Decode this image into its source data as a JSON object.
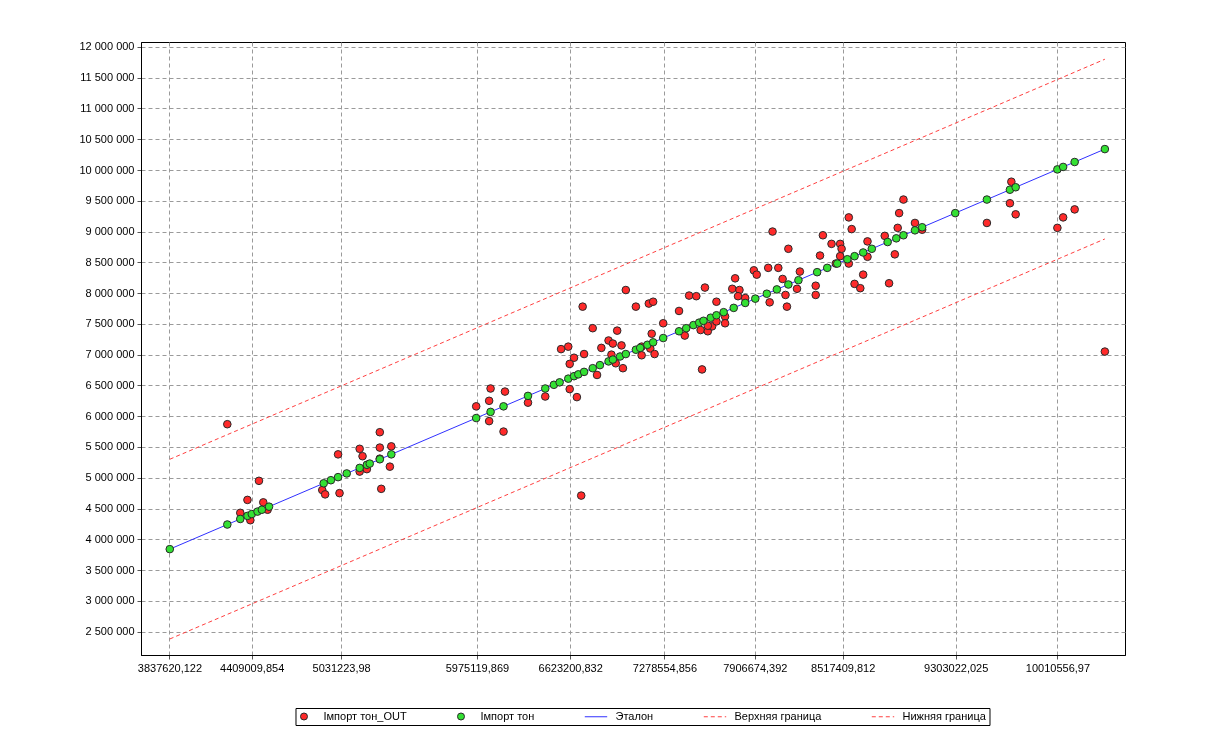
{
  "chart_data": {
    "type": "scatter",
    "grid": true,
    "legend": "bottom",
    "marker": "circle",
    "xlim": [
      3640000,
      10480000
    ],
    "ylim": [
      2120000,
      12080000
    ],
    "xticks": [
      {
        "value": 3837620.122,
        "label": "3837620,122"
      },
      {
        "value": 4409009.854,
        "label": "4409009,854"
      },
      {
        "value": 5031223.98,
        "label": "5031223,98"
      },
      {
        "value": 5975119.869,
        "label": "5975119,869"
      },
      {
        "value": 6623200.832,
        "label": "6623200,832"
      },
      {
        "value": 7278554.856,
        "label": "7278554,856"
      },
      {
        "value": 7906674.392,
        "label": "7906674,392"
      },
      {
        "value": 8517409.812,
        "label": "8517409,812"
      },
      {
        "value": 9303022.025,
        "label": "9303022,025"
      },
      {
        "value": 10010556.97,
        "label": "10010556,97"
      }
    ],
    "yticks": [
      {
        "value": 2500000,
        "label": "2 500 000"
      },
      {
        "value": 3000000,
        "label": "3 000 000"
      },
      {
        "value": 3500000,
        "label": "3 500 000"
      },
      {
        "value": 4000000,
        "label": "4 000 000"
      },
      {
        "value": 4500000,
        "label": "4 500 000"
      },
      {
        "value": 5000000,
        "label": "5 000 000"
      },
      {
        "value": 5500000,
        "label": "5 500 000"
      },
      {
        "value": 6000000,
        "label": "6 000 000"
      },
      {
        "value": 6500000,
        "label": "6 500 000"
      },
      {
        "value": 7000000,
        "label": "7 000 000"
      },
      {
        "value": 7500000,
        "label": "7 500 000"
      },
      {
        "value": 8000000,
        "label": "8 000 000"
      },
      {
        "value": 8500000,
        "label": "8 500 000"
      },
      {
        "value": 9000000,
        "label": "9 000 000"
      },
      {
        "value": 9500000,
        "label": "9 500 000"
      },
      {
        "value": 10000000,
        "label": "10 000 000"
      },
      {
        "value": 10500000,
        "label": "10 500 000"
      },
      {
        "value": 11000000,
        "label": "11 000 000"
      },
      {
        "value": 11500000,
        "label": "11 500 000"
      },
      {
        "value": 12000000,
        "label": "12 000 000"
      }
    ],
    "series": [
      {
        "name": "Імпорт тон_OUT",
        "color": "#ff2a2a",
        "x": [
          4240000,
          4460000,
          4380000,
          4330000,
          4400000,
          4490000,
          4520000,
          5010000,
          4900000,
          4920000,
          5020000,
          5160000,
          5300000,
          5300000,
          5380000,
          5370000,
          5310000,
          5180000,
          5160000,
          5210000,
          5300000,
          5970000,
          6070000,
          6170000,
          6060000,
          6060000,
          6160000,
          6330000,
          6450000,
          6620000,
          6670000,
          6700000,
          6710000,
          6780000,
          6560000,
          6610000,
          6650000,
          6620000,
          6720000,
          6810000,
          6840000,
          6890000,
          6920000,
          6980000,
          6950000,
          6940000,
          6990000,
          6910000,
          7010000,
          7080000,
          7170000,
          7200000,
          7120000,
          7120000,
          7190000,
          7180000,
          7210000,
          7270000,
          7380000,
          7450000,
          7500000,
          7560000,
          7640000,
          7420000,
          7540000,
          7530000,
          7580000,
          7610000,
          7770000,
          7750000,
          7800000,
          7790000,
          7840000,
          7700000,
          7700000,
          7640000,
          7580000,
          7900000,
          7920000,
          8030000,
          8000000,
          8070000,
          8140000,
          8100000,
          8120000,
          8010000,
          8130000,
          8200000,
          8220000,
          8330000,
          8330000,
          8360000,
          8380000,
          8440000,
          8500000,
          8510000,
          8500000,
          8560000,
          8580000,
          8470000,
          8560000,
          8600000,
          8640000,
          8660000,
          8690000,
          8690000,
          8810000,
          8880000,
          8840000,
          8900000,
          8910000,
          8940000,
          9020000,
          9070000,
          9520000,
          9690000,
          9680000,
          9720000,
          10010000,
          10050000,
          10130000,
          10340000
        ],
        "values": [
          5870000,
          4950000,
          4640000,
          4430000,
          4310000,
          4600000,
          4480000,
          5380000,
          4800000,
          4730000,
          4750000,
          5470000,
          5740000,
          5490000,
          5510000,
          5180000,
          4820000,
          5350000,
          5100000,
          5140000,
          5310000,
          6160000,
          6450000,
          6400000,
          6250000,
          5920000,
          5750000,
          6220000,
          6320000,
          6440000,
          6310000,
          4710000,
          7780000,
          7430000,
          7090000,
          7130000,
          6950000,
          6850000,
          7010000,
          6670000,
          7110000,
          7230000,
          7180000,
          7150000,
          7390000,
          6860000,
          6780000,
          7000000,
          8050000,
          7780000,
          7830000,
          7860000,
          7130000,
          6990000,
          7340000,
          7100000,
          7010000,
          7510000,
          7710000,
          7960000,
          7950000,
          8090000,
          7860000,
          7310000,
          6760000,
          7400000,
          7380000,
          7460000,
          8240000,
          8070000,
          8050000,
          7950000,
          7920000,
          7620000,
          7510000,
          7540000,
          7470000,
          8370000,
          8300000,
          9000000,
          8410000,
          8410000,
          8720000,
          8230000,
          7970000,
          7850000,
          7780000,
          8070000,
          8350000,
          8120000,
          7970000,
          8610000,
          8940000,
          8800000,
          8800000,
          8720000,
          8600000,
          9230000,
          9040000,
          8480000,
          8480000,
          8150000,
          8080000,
          8300000,
          8840000,
          8590000,
          8930000,
          8630000,
          8160000,
          9060000,
          9300000,
          9520000,
          9140000,
          9030000,
          9140000,
          9810000,
          9460000,
          9280000,
          9060000,
          9230000,
          9360000,
          7050000
        ]
      },
      {
        "name": "Імпорт тон",
        "color": "#33e033",
        "x": [
          3840000,
          4240000,
          4330000,
          4380000,
          4410000,
          4450000,
          4480000,
          4530000,
          4910000,
          4960000,
          5010000,
          5070000,
          5160000,
          5210000,
          5230000,
          5300000,
          5380000,
          5970000,
          6070000,
          6160000,
          6330000,
          6450000,
          6510000,
          6550000,
          6610000,
          6650000,
          6680000,
          6720000,
          6780000,
          6830000,
          6890000,
          6920000,
          6970000,
          7010000,
          7080000,
          7110000,
          7160000,
          7200000,
          7270000,
          7380000,
          7430000,
          7480000,
          7520000,
          7550000,
          7600000,
          7640000,
          7690000,
          7760000,
          7840000,
          7910000,
          7990000,
          8060000,
          8140000,
          8210000,
          8340000,
          8410000,
          8480000,
          8550000,
          8600000,
          8660000,
          8720000,
          8830000,
          8890000,
          8940000,
          9020000,
          9070000,
          9300000,
          9520000,
          9680000,
          9720000,
          10010000,
          10050000,
          10130000,
          10340000
        ],
        "values": [
          3840000,
          4240000,
          4330000,
          4380000,
          4410000,
          4450000,
          4480000,
          4530000,
          4910000,
          4960000,
          5010000,
          5070000,
          5160000,
          5210000,
          5230000,
          5300000,
          5380000,
          5970000,
          6070000,
          6160000,
          6330000,
          6450000,
          6510000,
          6550000,
          6610000,
          6650000,
          6680000,
          6720000,
          6780000,
          6830000,
          6890000,
          6920000,
          6970000,
          7010000,
          7080000,
          7110000,
          7160000,
          7200000,
          7270000,
          7380000,
          7430000,
          7480000,
          7520000,
          7550000,
          7600000,
          7640000,
          7690000,
          7760000,
          7840000,
          7910000,
          7990000,
          8060000,
          8140000,
          8210000,
          8340000,
          8410000,
          8480000,
          8550000,
          8600000,
          8660000,
          8720000,
          8830000,
          8890000,
          8940000,
          9020000,
          9070000,
          9300000,
          9520000,
          9680000,
          9720000,
          10010000,
          10050000,
          10130000,
          10340000
        ]
      },
      {
        "name": "Эталон",
        "type": "line",
        "color": "#3030ff",
        "marker": "none",
        "line_style": "solid",
        "x": [
          3840000,
          10340000
        ],
        "values": [
          3840000,
          10340000
        ]
      },
      {
        "name": "Верхняя граница",
        "type": "line",
        "color": "#ff4040",
        "marker": "none",
        "line_style": "dashed",
        "x": [
          3840000,
          10340000
        ],
        "values": [
          5300000,
          11800000
        ]
      },
      {
        "name": "Нижняя граница",
        "type": "line",
        "color": "#ff4040",
        "marker": "none",
        "line_style": "dashed",
        "x": [
          3840000,
          10340000
        ],
        "values": [
          2380000,
          8880000
        ]
      }
    ]
  }
}
